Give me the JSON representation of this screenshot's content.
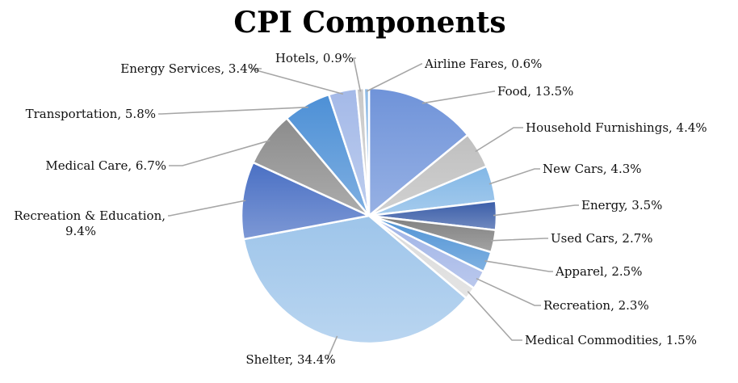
{
  "chart_data": {
    "type": "pie",
    "title": "CPI Components",
    "slices": [
      {
        "label": "Food",
        "value": 13.5,
        "display": "Food, 13.5%",
        "color": "#6f93d9"
      },
      {
        "label": "Household Furnishings",
        "value": 4.4,
        "display": "Household Furnishings, 4.4%",
        "color": "#bfbfbf"
      },
      {
        "label": "New Cars",
        "value": 4.3,
        "display": "New Cars, 4.3%",
        "color": "#82b7e6"
      },
      {
        "label": "Energy",
        "value": 3.5,
        "display": "Energy, 3.5%",
        "color": "#3a5da8"
      },
      {
        "label": "Used Cars",
        "value": 2.7,
        "display": "Used Cars, 2.7%",
        "color": "#7f7f7f"
      },
      {
        "label": "Apparel",
        "value": 2.5,
        "display": "Apparel, 2.5%",
        "color": "#4f93d5"
      },
      {
        "label": "Recreation",
        "value": 2.3,
        "display": "Recreation, 2.3%",
        "color": "#9fb3e6"
      },
      {
        "label": "Medical Commodities",
        "value": 1.5,
        "display": "Medical Commodities, 1.5%",
        "color": "#d9d9d9"
      },
      {
        "label": "Shelter",
        "value": 34.4,
        "display": "Shelter, 34.4%",
        "color": "#9ec5ea"
      },
      {
        "label": "Recreation & Education",
        "value": 9.4,
        "display": [
          "Recreation & Education,",
          "9.4%"
        ],
        "color": "#4a70c4"
      },
      {
        "label": "Medical Care",
        "value": 6.7,
        "display": "Medical Care, 6.7%",
        "color": "#8c8c8c"
      },
      {
        "label": "Transportation",
        "value": 5.8,
        "display": "Transportation, 5.8%",
        "color": "#4d90d6"
      },
      {
        "label": "Energy Services",
        "value": 3.4,
        "display": "Energy Services, 3.4%",
        "color": "#a4b9e8"
      },
      {
        "label": "Hotels",
        "value": 0.9,
        "display": "Hotels, 0.9%",
        "color": "#c9c9c9"
      },
      {
        "label": "Airline Fares",
        "value": 0.6,
        "display": "Airline Fares, 0.6%",
        "color": "#8fbbe6"
      }
    ]
  }
}
